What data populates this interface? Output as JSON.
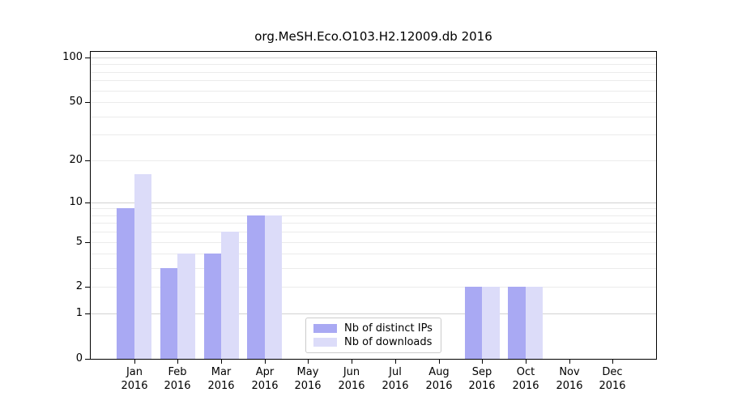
{
  "chart_data": {
    "type": "bar",
    "title": "org.MeSH.Eco.O103.H2.12009.db 2016",
    "year": "2016",
    "categories": [
      "Jan",
      "Feb",
      "Mar",
      "Apr",
      "May",
      "Jun",
      "Jul",
      "Aug",
      "Sep",
      "Oct",
      "Nov",
      "Dec"
    ],
    "series": [
      {
        "name": "Nb of distinct IPs",
        "color": "#a9a9f3",
        "values": [
          9,
          3,
          4,
          8,
          0,
          0,
          0,
          0,
          2,
          2,
          0,
          0
        ]
      },
      {
        "name": "Nb of downloads",
        "color": "#dcdcf9",
        "values": [
          16,
          4,
          6,
          8,
          0,
          0,
          0,
          0,
          2,
          2,
          0,
          0
        ]
      }
    ],
    "xlabel": "",
    "ylabel": "",
    "yscale": "log1p",
    "ylim": [
      0,
      110.5
    ],
    "yticks": [
      0,
      1,
      2,
      5,
      10,
      20,
      50,
      100
    ],
    "grid": {
      "major": [
        1,
        10,
        100
      ],
      "minor": [
        2,
        3,
        4,
        5,
        6,
        7,
        8,
        9,
        20,
        30,
        40,
        50,
        60,
        70,
        80,
        90
      ]
    },
    "legend_position": "lower center-left inside plot"
  }
}
